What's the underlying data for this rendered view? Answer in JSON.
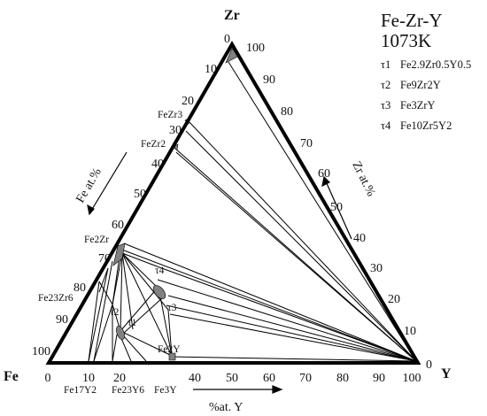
{
  "title": {
    "system": "Fe-Zr-Y",
    "temperature": "1073K"
  },
  "vertices": {
    "top": "Zr",
    "left": "Fe",
    "right": "Y"
  },
  "axis_labels": {
    "left": "Fe at.%",
    "right": "Zr at.%",
    "bottom": "%at. Y"
  },
  "ticks": {
    "left": [
      "0",
      "10",
      "20",
      "30",
      "40",
      "50",
      "60",
      "70",
      "80",
      "90",
      "100"
    ],
    "right": [
      "100",
      "90",
      "80",
      "70",
      "60",
      "50",
      "40",
      "30",
      "20",
      "10",
      "0"
    ],
    "bottom": [
      "0",
      "10",
      "20",
      "30",
      "40",
      "50",
      "60",
      "70",
      "80",
      "90",
      "100"
    ]
  },
  "legend": [
    {
      "sym": "τ1",
      "formula": "Fe2.9Zr0.5Y0.5"
    },
    {
      "sym": "τ2",
      "formula": "Fe9Zr2Y"
    },
    {
      "sym": "τ3",
      "formula": "Fe3ZrY"
    },
    {
      "sym": "τ4",
      "formula": "Fe10Zr5Y2"
    }
  ],
  "phases": {
    "FeZr3": "FeZr3",
    "FeZr2": "FeZr2",
    "Fe2Zr": "Fe2Zr",
    "Fe23Zr6": "Fe23Zr6",
    "Fe17Y2": "Fe17Y2",
    "Fe23Y6": "Fe23Y6",
    "Fe3Y": "Fe3Y",
    "Fe2Y": "Fe2Y",
    "tau1": "τ1",
    "tau2": "τ2",
    "tau3": "τ3",
    "tau4": "τ4"
  },
  "colors": {
    "line": "#000000",
    "region": "#808080"
  }
}
